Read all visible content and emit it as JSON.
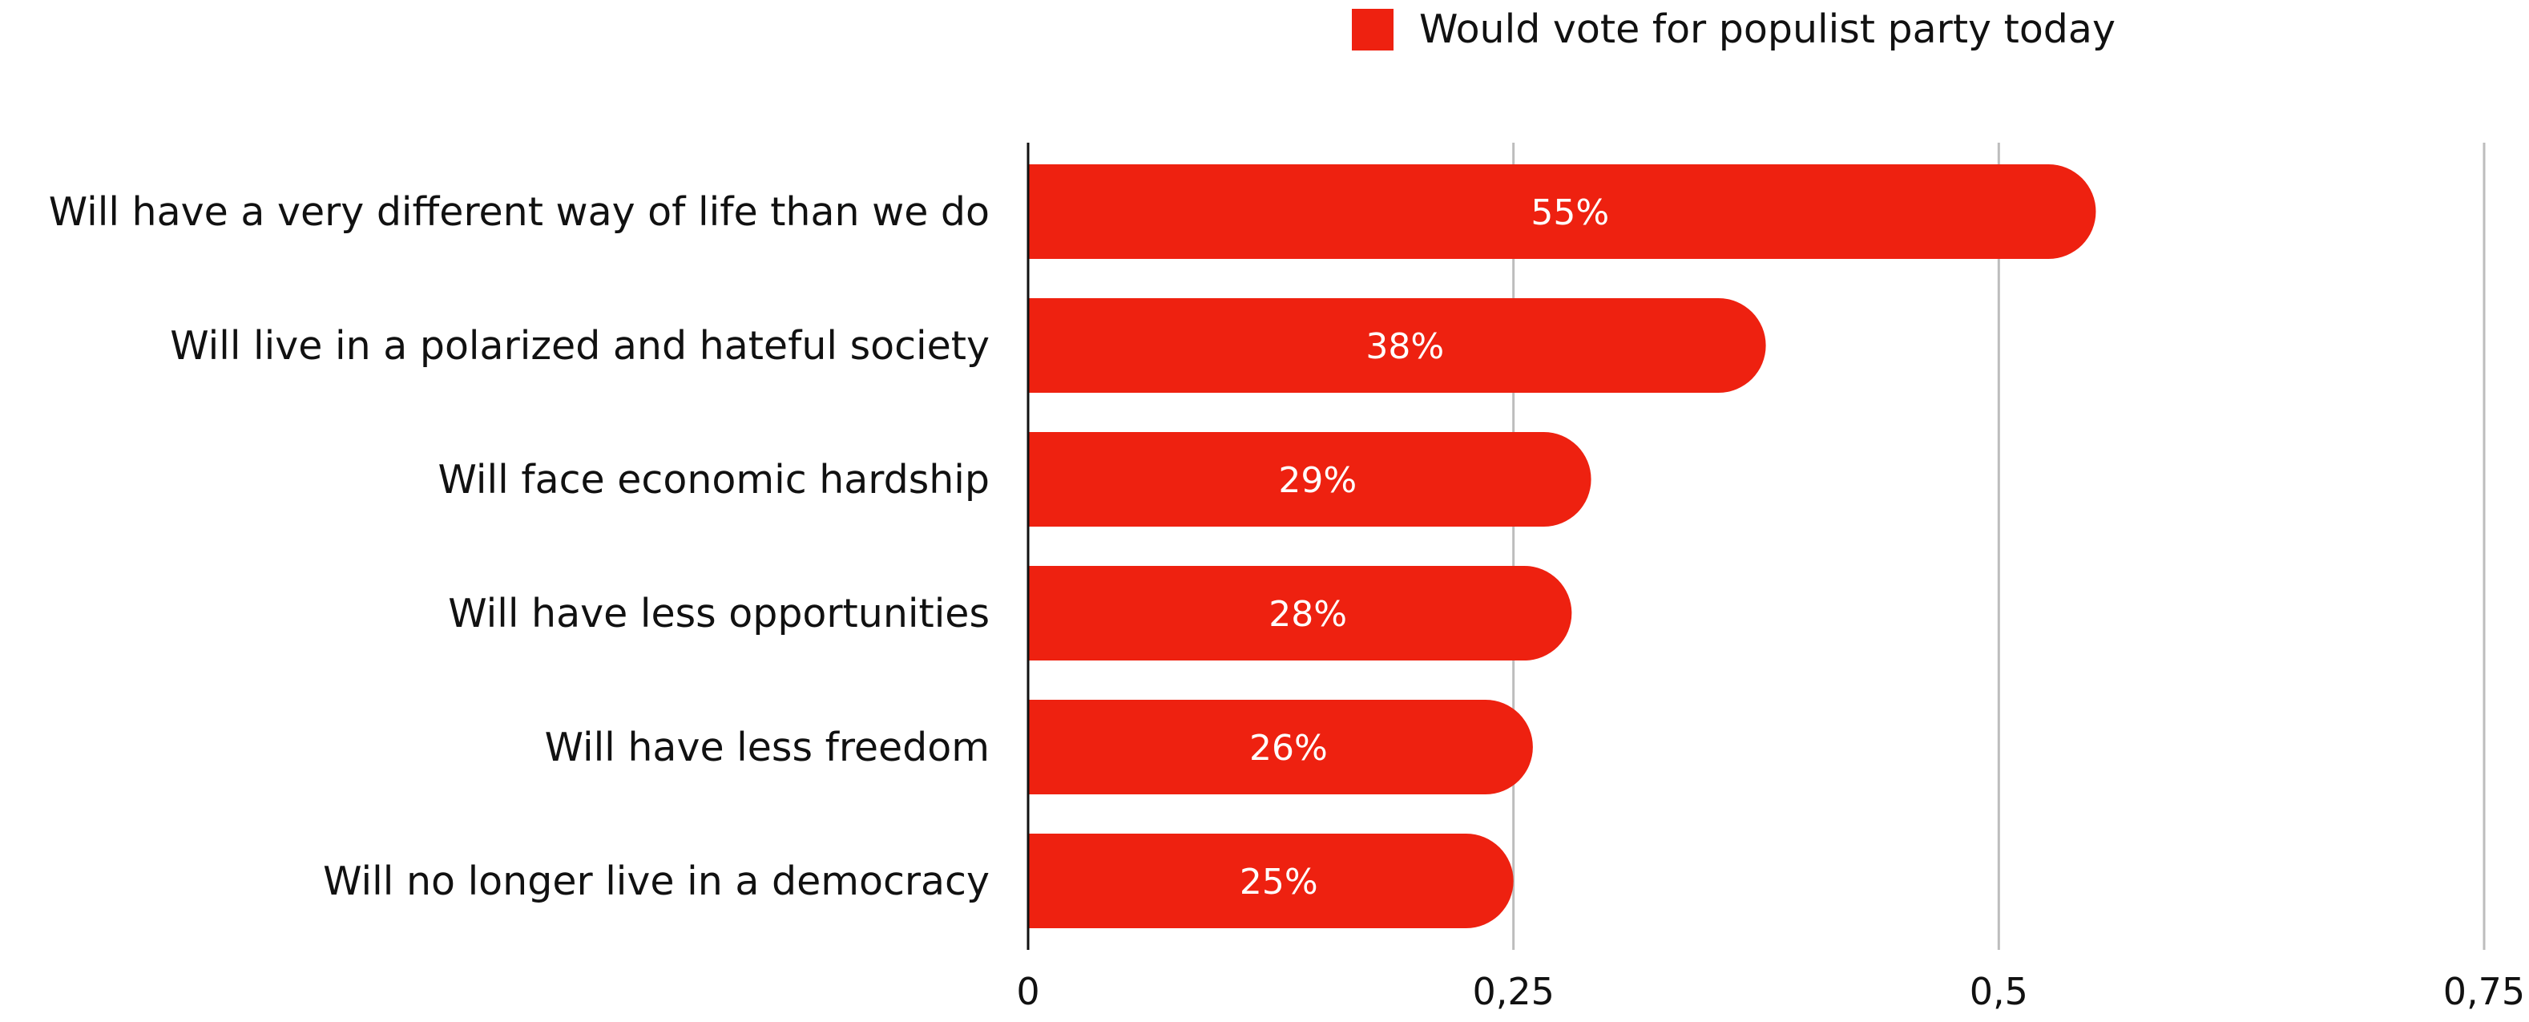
{
  "chart_data": {
    "type": "bar",
    "orientation": "horizontal",
    "categories": [
      "Will have a very different way of life than we do",
      "Will live in a polarized and hateful society",
      "Will face economic hardship",
      "Will have less opportunities",
      "Will have less freedom",
      "Will no longer live in a democracy"
    ],
    "series": [
      {
        "name": "Would vote for populist party today",
        "values": [
          0.55,
          0.38,
          0.29,
          0.28,
          0.26,
          0.25
        ],
        "data_labels": [
          "55%",
          "38%",
          "29%",
          "28%",
          "26%",
          "25%"
        ],
        "color": "#ee2110"
      }
    ],
    "title": "",
    "xlabel": "",
    "ylabel": "",
    "xlim": [
      0,
      0.75
    ],
    "x_ticks": [
      0,
      0.25,
      0.5,
      0.75
    ],
    "x_tick_labels": [
      "0",
      "0,25",
      "0,5",
      "0,75"
    ],
    "grid": "vertical",
    "legend_position": "top"
  },
  "colors": {
    "bar": "#ee2110",
    "grid": "#bdbdbd",
    "axis": "#111111",
    "text": "#111111",
    "bar_text": "#ffffff"
  }
}
